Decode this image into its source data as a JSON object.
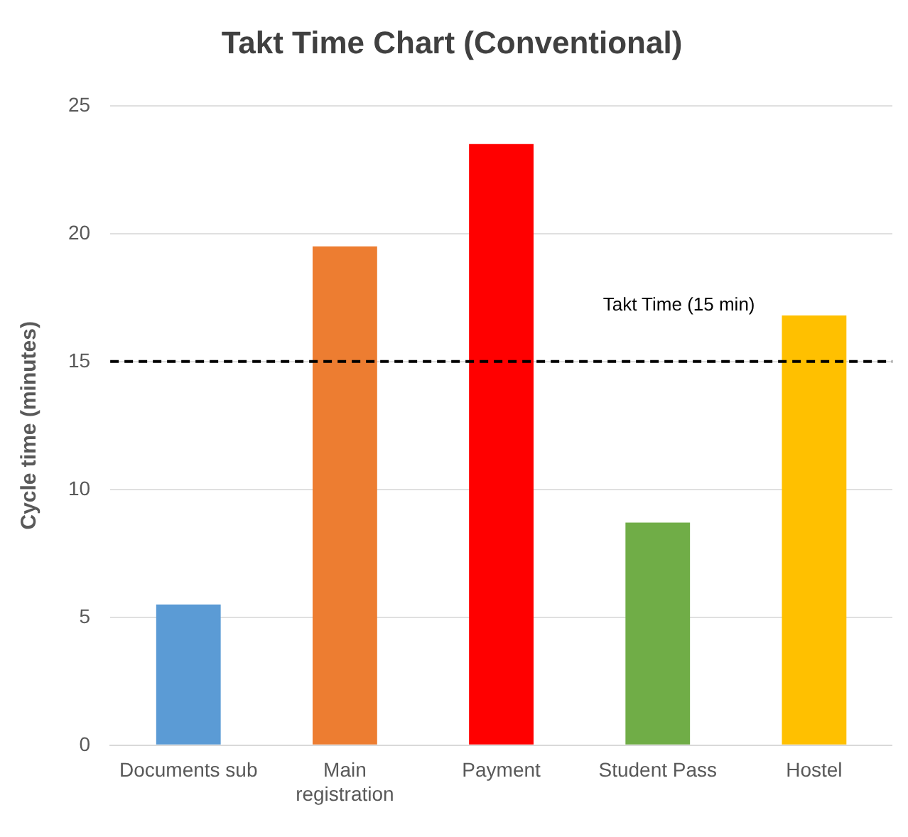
{
  "chart_data": {
    "type": "bar",
    "title": "Takt Time Chart (Conventional)",
    "ylabel": "Cycle time (minutes)",
    "categories": [
      "Documents sub",
      "Main registration",
      "Payment",
      "Student Pass",
      "Hostel"
    ],
    "values": [
      5.5,
      19.5,
      23.5,
      8.7,
      16.8
    ],
    "colors": [
      "#5b9bd5",
      "#ed7d31",
      "#ff0000",
      "#70ad47",
      "#ffc000"
    ],
    "ylim": [
      0,
      25
    ],
    "yticks": [
      0,
      5,
      10,
      15,
      20,
      25
    ],
    "grid": "y",
    "legend": false,
    "ref_lines": [
      {
        "axis": "y",
        "value": 15,
        "label": "Takt Time (15 min)",
        "color": "#000000",
        "line_style": "dashed"
      }
    ]
  }
}
